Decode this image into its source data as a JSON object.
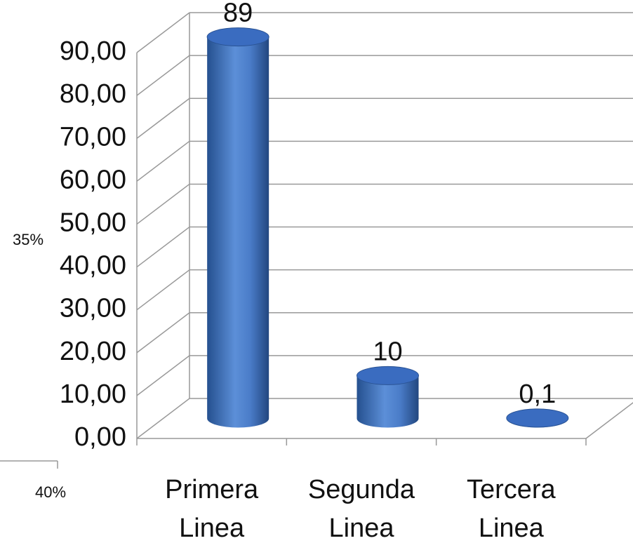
{
  "chart_data": {
    "type": "bar",
    "categories": [
      "Primera Linea",
      "Segunda Linea",
      "Tercera Linea"
    ],
    "values": [
      89,
      10,
      0.1
    ],
    "value_labels": [
      "89",
      "10",
      "0,1"
    ],
    "color": "#3a6cc0",
    "ylim": [
      0,
      90
    ],
    "yticks": [
      {
        "value": 0,
        "label": "0,00"
      },
      {
        "value": 10,
        "label": "10,00"
      },
      {
        "value": 20,
        "label": "20,00"
      },
      {
        "value": 30,
        "label": "30,00"
      },
      {
        "value": 40,
        "label": "40,00"
      },
      {
        "value": 50,
        "label": "50,00"
      },
      {
        "value": 60,
        "label": "60,00"
      },
      {
        "value": 70,
        "label": "70,00"
      },
      {
        "value": 80,
        "label": "80,00"
      },
      {
        "value": 90,
        "label": "90,00"
      }
    ],
    "grid": true,
    "annotations": [
      "35%",
      "40%"
    ]
  }
}
